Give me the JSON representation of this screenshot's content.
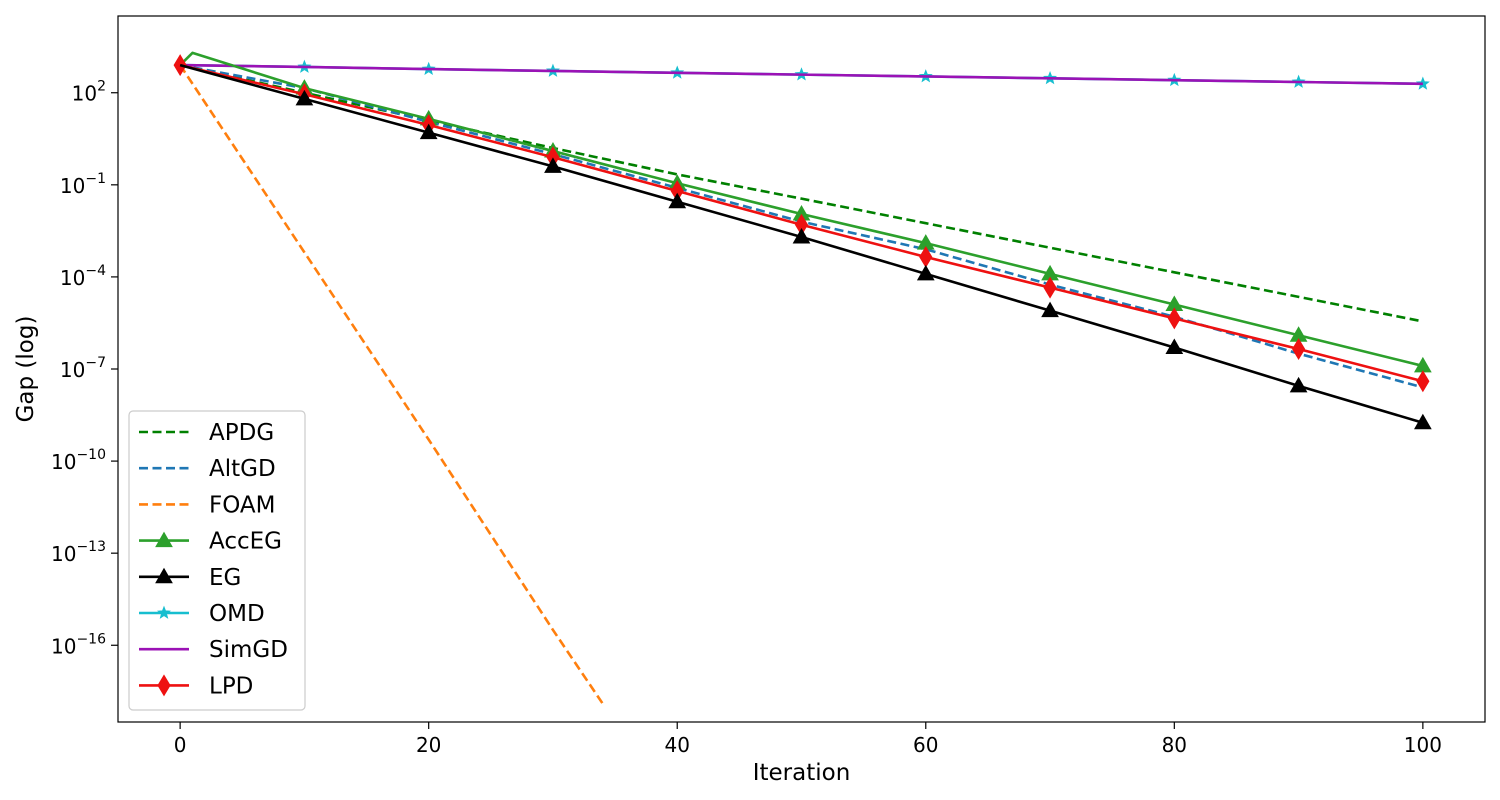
{
  "chart_data": {
    "type": "line",
    "title": "",
    "xlabel": "Iteration",
    "ylabel": "Gap (log)",
    "y_scale": "log",
    "grid": false,
    "legend_position": "lower-left",
    "xlim": [
      -5,
      105
    ],
    "ylim_log10": [
      -18.5,
      4.5
    ],
    "x_ticks": [
      0,
      20,
      40,
      60,
      80,
      100
    ],
    "x_tick_labels": [
      "0",
      "20",
      "40",
      "60",
      "80",
      "100"
    ],
    "y_ticks_log10": [
      2,
      -1,
      -4,
      -7,
      -10,
      -13,
      -16
    ],
    "y_tick_labels": [
      {
        "base": "10",
        "exp": "2"
      },
      {
        "base": "10",
        "exp": "−1"
      },
      {
        "base": "10",
        "exp": "−4"
      },
      {
        "base": "10",
        "exp": "−7"
      },
      {
        "base": "10",
        "exp": "−10"
      },
      {
        "base": "10",
        "exp": "−13"
      },
      {
        "base": "10",
        "exp": "−16"
      }
    ],
    "series": [
      {
        "name": "APDG",
        "color": "#008000",
        "style": "dashed",
        "marker": "none",
        "x": [
          0,
          10,
          20,
          30,
          40,
          50,
          60,
          70,
          80,
          90,
          100
        ],
        "log10_y": [
          2.9,
          2.0,
          1.1,
          0.2,
          -0.66,
          -1.45,
          -2.25,
          -3.05,
          -3.85,
          -4.65,
          -5.45
        ]
      },
      {
        "name": "AltGD",
        "color": "#1f77b4",
        "style": "dashed",
        "marker": "none",
        "x": [
          0,
          10,
          20,
          30,
          40,
          50,
          60,
          70,
          80,
          90,
          100
        ],
        "log10_y": [
          2.9,
          2.15,
          1.05,
          0.0,
          -1.1,
          -2.2,
          -3.1,
          -4.25,
          -5.3,
          -6.5,
          -7.6
        ]
      },
      {
        "name": "FOAM",
        "color": "#ff7f0e",
        "style": "dashed",
        "marker": "none",
        "x": [
          0,
          10,
          20,
          30,
          34
        ],
        "log10_y": [
          2.9,
          -3.2,
          -9.3,
          -15.5,
          -17.9
        ]
      },
      {
        "name": "AccEG",
        "color": "#2ca02c",
        "style": "solid",
        "marker": "triangle",
        "x": [
          0,
          1,
          10,
          20,
          30,
          40,
          50,
          60,
          70,
          80,
          90,
          100
        ],
        "log10_y": [
          2.9,
          3.3,
          2.15,
          1.15,
          0.1,
          -0.95,
          -1.95,
          -2.9,
          -3.9,
          -4.9,
          -5.9,
          -6.9
        ],
        "marker_x": [
          10,
          20,
          30,
          40,
          50,
          60,
          70,
          80,
          90,
          100
        ]
      },
      {
        "name": "EG",
        "color": "#000000",
        "style": "solid",
        "marker": "triangle",
        "x": [
          0,
          10,
          20,
          30,
          40,
          50,
          60,
          70,
          80,
          90,
          100
        ],
        "log10_y": [
          2.9,
          1.8,
          0.7,
          -0.4,
          -1.55,
          -2.7,
          -3.9,
          -5.1,
          -6.3,
          -7.55,
          -8.75
        ],
        "marker_x": [
          10,
          20,
          30,
          40,
          50,
          60,
          70,
          80,
          90,
          100
        ]
      },
      {
        "name": "OMD",
        "color": "#17becf",
        "style": "solid",
        "marker": "star",
        "x": [
          0,
          10,
          20,
          30,
          40,
          50,
          60,
          70,
          80,
          90,
          100
        ],
        "log10_y": [
          2.9,
          2.84,
          2.77,
          2.71,
          2.65,
          2.59,
          2.53,
          2.47,
          2.41,
          2.35,
          2.29
        ],
        "marker_x": [
          10,
          20,
          30,
          40,
          50,
          60,
          70,
          80,
          90,
          100
        ]
      },
      {
        "name": "SimGD",
        "color": "#9b12b5",
        "style": "solid",
        "marker": "none",
        "x": [
          0,
          10,
          20,
          30,
          40,
          50,
          60,
          70,
          80,
          90,
          100
        ],
        "log10_y": [
          2.9,
          2.84,
          2.77,
          2.71,
          2.65,
          2.59,
          2.53,
          2.47,
          2.41,
          2.35,
          2.29
        ]
      },
      {
        "name": "LPD",
        "color": "#ee1111",
        "style": "solid",
        "marker": "diamond",
        "x": [
          0,
          10,
          20,
          30,
          40,
          50,
          60,
          70,
          80,
          90,
          100
        ],
        "log10_y": [
          2.9,
          1.95,
          0.95,
          -0.1,
          -1.2,
          -2.3,
          -3.35,
          -4.35,
          -5.35,
          -6.35,
          -7.4
        ],
        "marker_x": [
          0,
          10,
          20,
          30,
          40,
          50,
          60,
          70,
          80,
          90,
          100
        ]
      }
    ]
  }
}
